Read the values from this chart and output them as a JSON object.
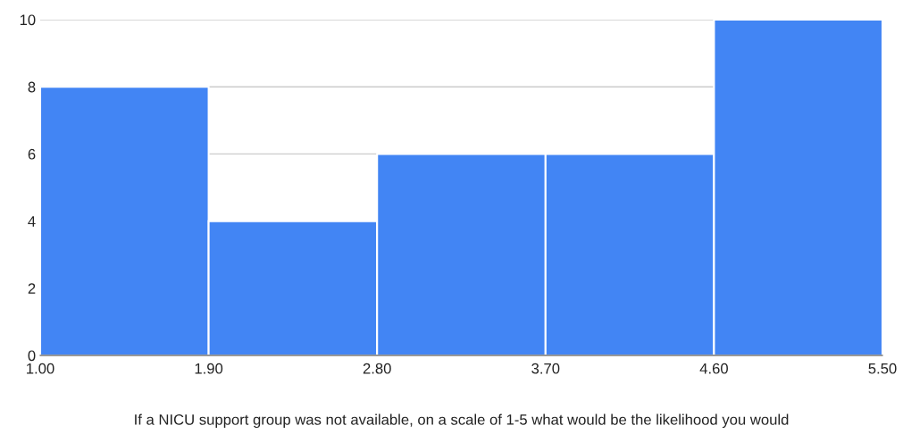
{
  "chart_data": {
    "type": "histogram",
    "xlabel": "If a NICU support group was not available, on a scale of 1-5 what would be the likelihood you would",
    "bins": [
      1.0,
      1.9,
      2.8,
      3.7,
      4.6,
      5.5
    ],
    "values": [
      8,
      4,
      6,
      6,
      10
    ],
    "color": "#4285f4",
    "xlim": [
      1.0,
      5.5
    ],
    "xticks": [
      {
        "value": 1.0,
        "label": "1.00"
      },
      {
        "value": 1.9,
        "label": "1.90"
      },
      {
        "value": 2.8,
        "label": "2.80"
      },
      {
        "value": 3.7,
        "label": "3.70"
      },
      {
        "value": 4.6,
        "label": "4.60"
      },
      {
        "value": 5.5,
        "label": "5.50"
      }
    ],
    "ylim": [
      0,
      10
    ],
    "yticks": [
      0,
      2,
      4,
      6,
      8,
      10
    ],
    "grid": "y"
  }
}
